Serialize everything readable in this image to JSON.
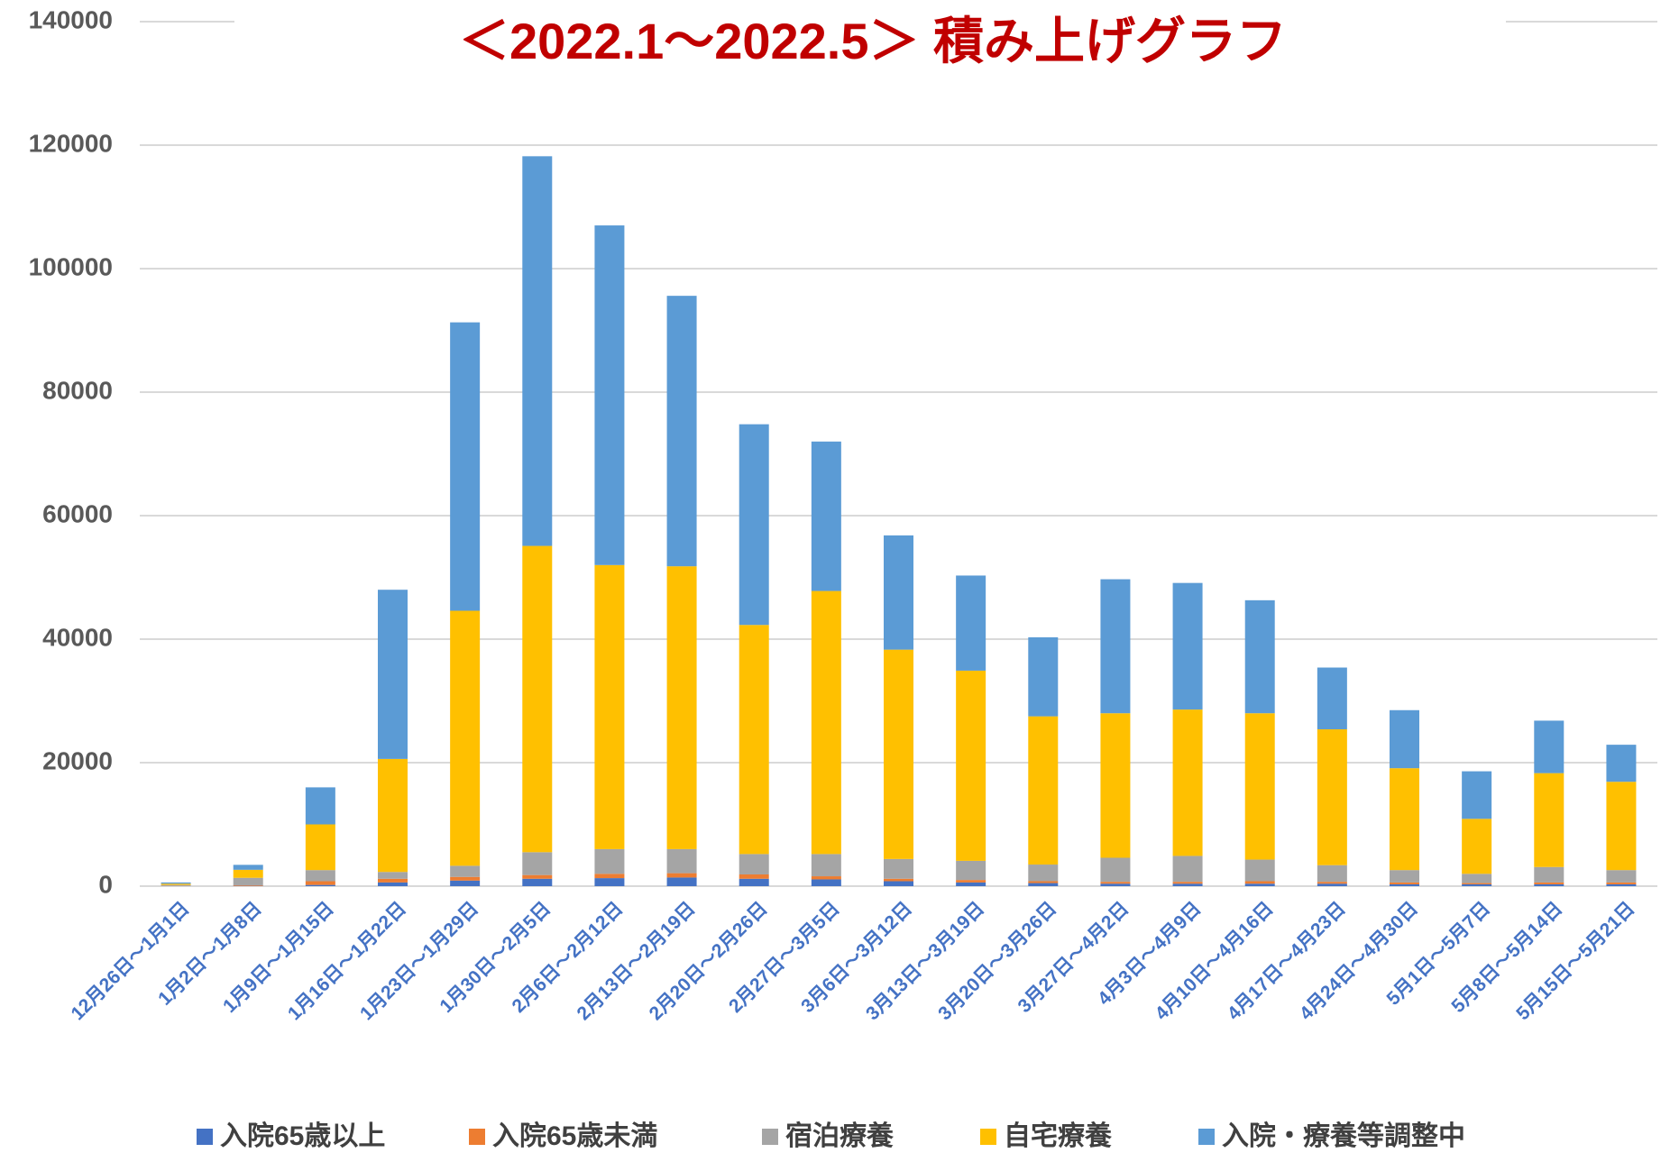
{
  "chart_data": {
    "type": "stacked_bar",
    "title": "＜2022.1～2022.5＞ 積み上げグラフ",
    "categories": [
      "12月26日～1月1日",
      "1月2日～1月8日",
      "1月9日～1月15日",
      "1月16日～1月22日",
      "1月23日～1月29日",
      "1月30日～2月5日",
      "2月6日～2月12日",
      "2月13日～2月19日",
      "2月20日～2月26日",
      "2月27日～3月5日",
      "3月6日～3月12日",
      "3月13日～3月19日",
      "3月20日～3月26日",
      "3月27日～4月2日",
      "4月3日～4月9日",
      "4月10日～4月16日",
      "4月17日～4月23日",
      "4月24日～4月30日",
      "5月1日～5月7日",
      "5月8日～5月14日",
      "5月15日～5月21日"
    ],
    "series": [
      {
        "name": "入院65歳以上",
        "color": "#4472c4",
        "values": [
          20,
          50,
          200,
          600,
          900,
          1200,
          1300,
          1400,
          1200,
          1100,
          800,
          600,
          500,
          400,
          400,
          400,
          400,
          300,
          300,
          300,
          300
        ]
      },
      {
        "name": "入院65歳未満",
        "color": "#ed7d31",
        "values": [
          30,
          100,
          600,
          600,
          600,
          600,
          700,
          700,
          700,
          500,
          400,
          400,
          300,
          300,
          300,
          400,
          300,
          300,
          200,
          300,
          300
        ]
      },
      {
        "name": "宿泊療養",
        "color": "#a5a5a5",
        "values": [
          150,
          1200,
          1800,
          1100,
          1800,
          3700,
          4000,
          3900,
          3300,
          3600,
          3200,
          3100,
          2700,
          3900,
          4200,
          3500,
          2700,
          2000,
          1500,
          2500,
          2000
        ]
      },
      {
        "name": "自宅療養",
        "color": "#ffc000",
        "values": [
          200,
          1300,
          7400,
          18300,
          41300,
          49600,
          46000,
          45800,
          37100,
          42600,
          33900,
          30800,
          24000,
          23400,
          23700,
          23700,
          22000,
          16500,
          8900,
          15200,
          14300
        ]
      },
      {
        "name": "入院・療養等調整中",
        "color": "#5b9bd5",
        "values": [
          200,
          800,
          6000,
          27400,
          46700,
          63100,
          55000,
          43800,
          32500,
          24200,
          18500,
          15400,
          12800,
          21700,
          20500,
          18300,
          10000,
          9400,
          7700,
          8500,
          6000
        ]
      }
    ],
    "ylim": [
      0,
      140000
    ],
    "yticks": [
      0,
      20000,
      40000,
      60000,
      80000,
      100000,
      120000,
      140000
    ],
    "grid": true
  }
}
